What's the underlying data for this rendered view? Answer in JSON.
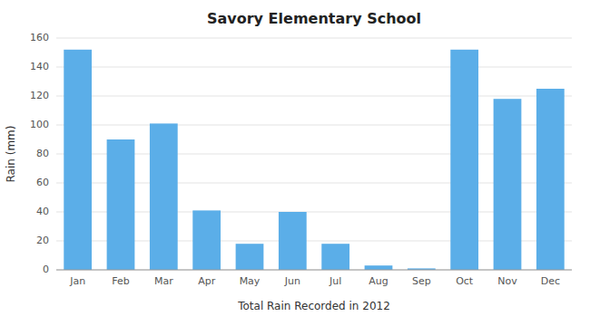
{
  "chart_data": {
    "type": "bar",
    "title": "Savory Elementary School",
    "xlabel": "Total Rain Recorded in 2012",
    "ylabel": "Rain (mm)",
    "categories": [
      "Jan",
      "Feb",
      "Mar",
      "Apr",
      "May",
      "Jun",
      "Jul",
      "Aug",
      "Sep",
      "Oct",
      "Nov",
      "Dec"
    ],
    "values": [
      152,
      90,
      101,
      41,
      18,
      40,
      18,
      3,
      1,
      152,
      118,
      125
    ],
    "color": "#5BAEE8",
    "ylim": [
      0,
      160
    ],
    "yticks": [
      0,
      20,
      40,
      60,
      80,
      100,
      120,
      140,
      160
    ],
    "grid": true
  }
}
